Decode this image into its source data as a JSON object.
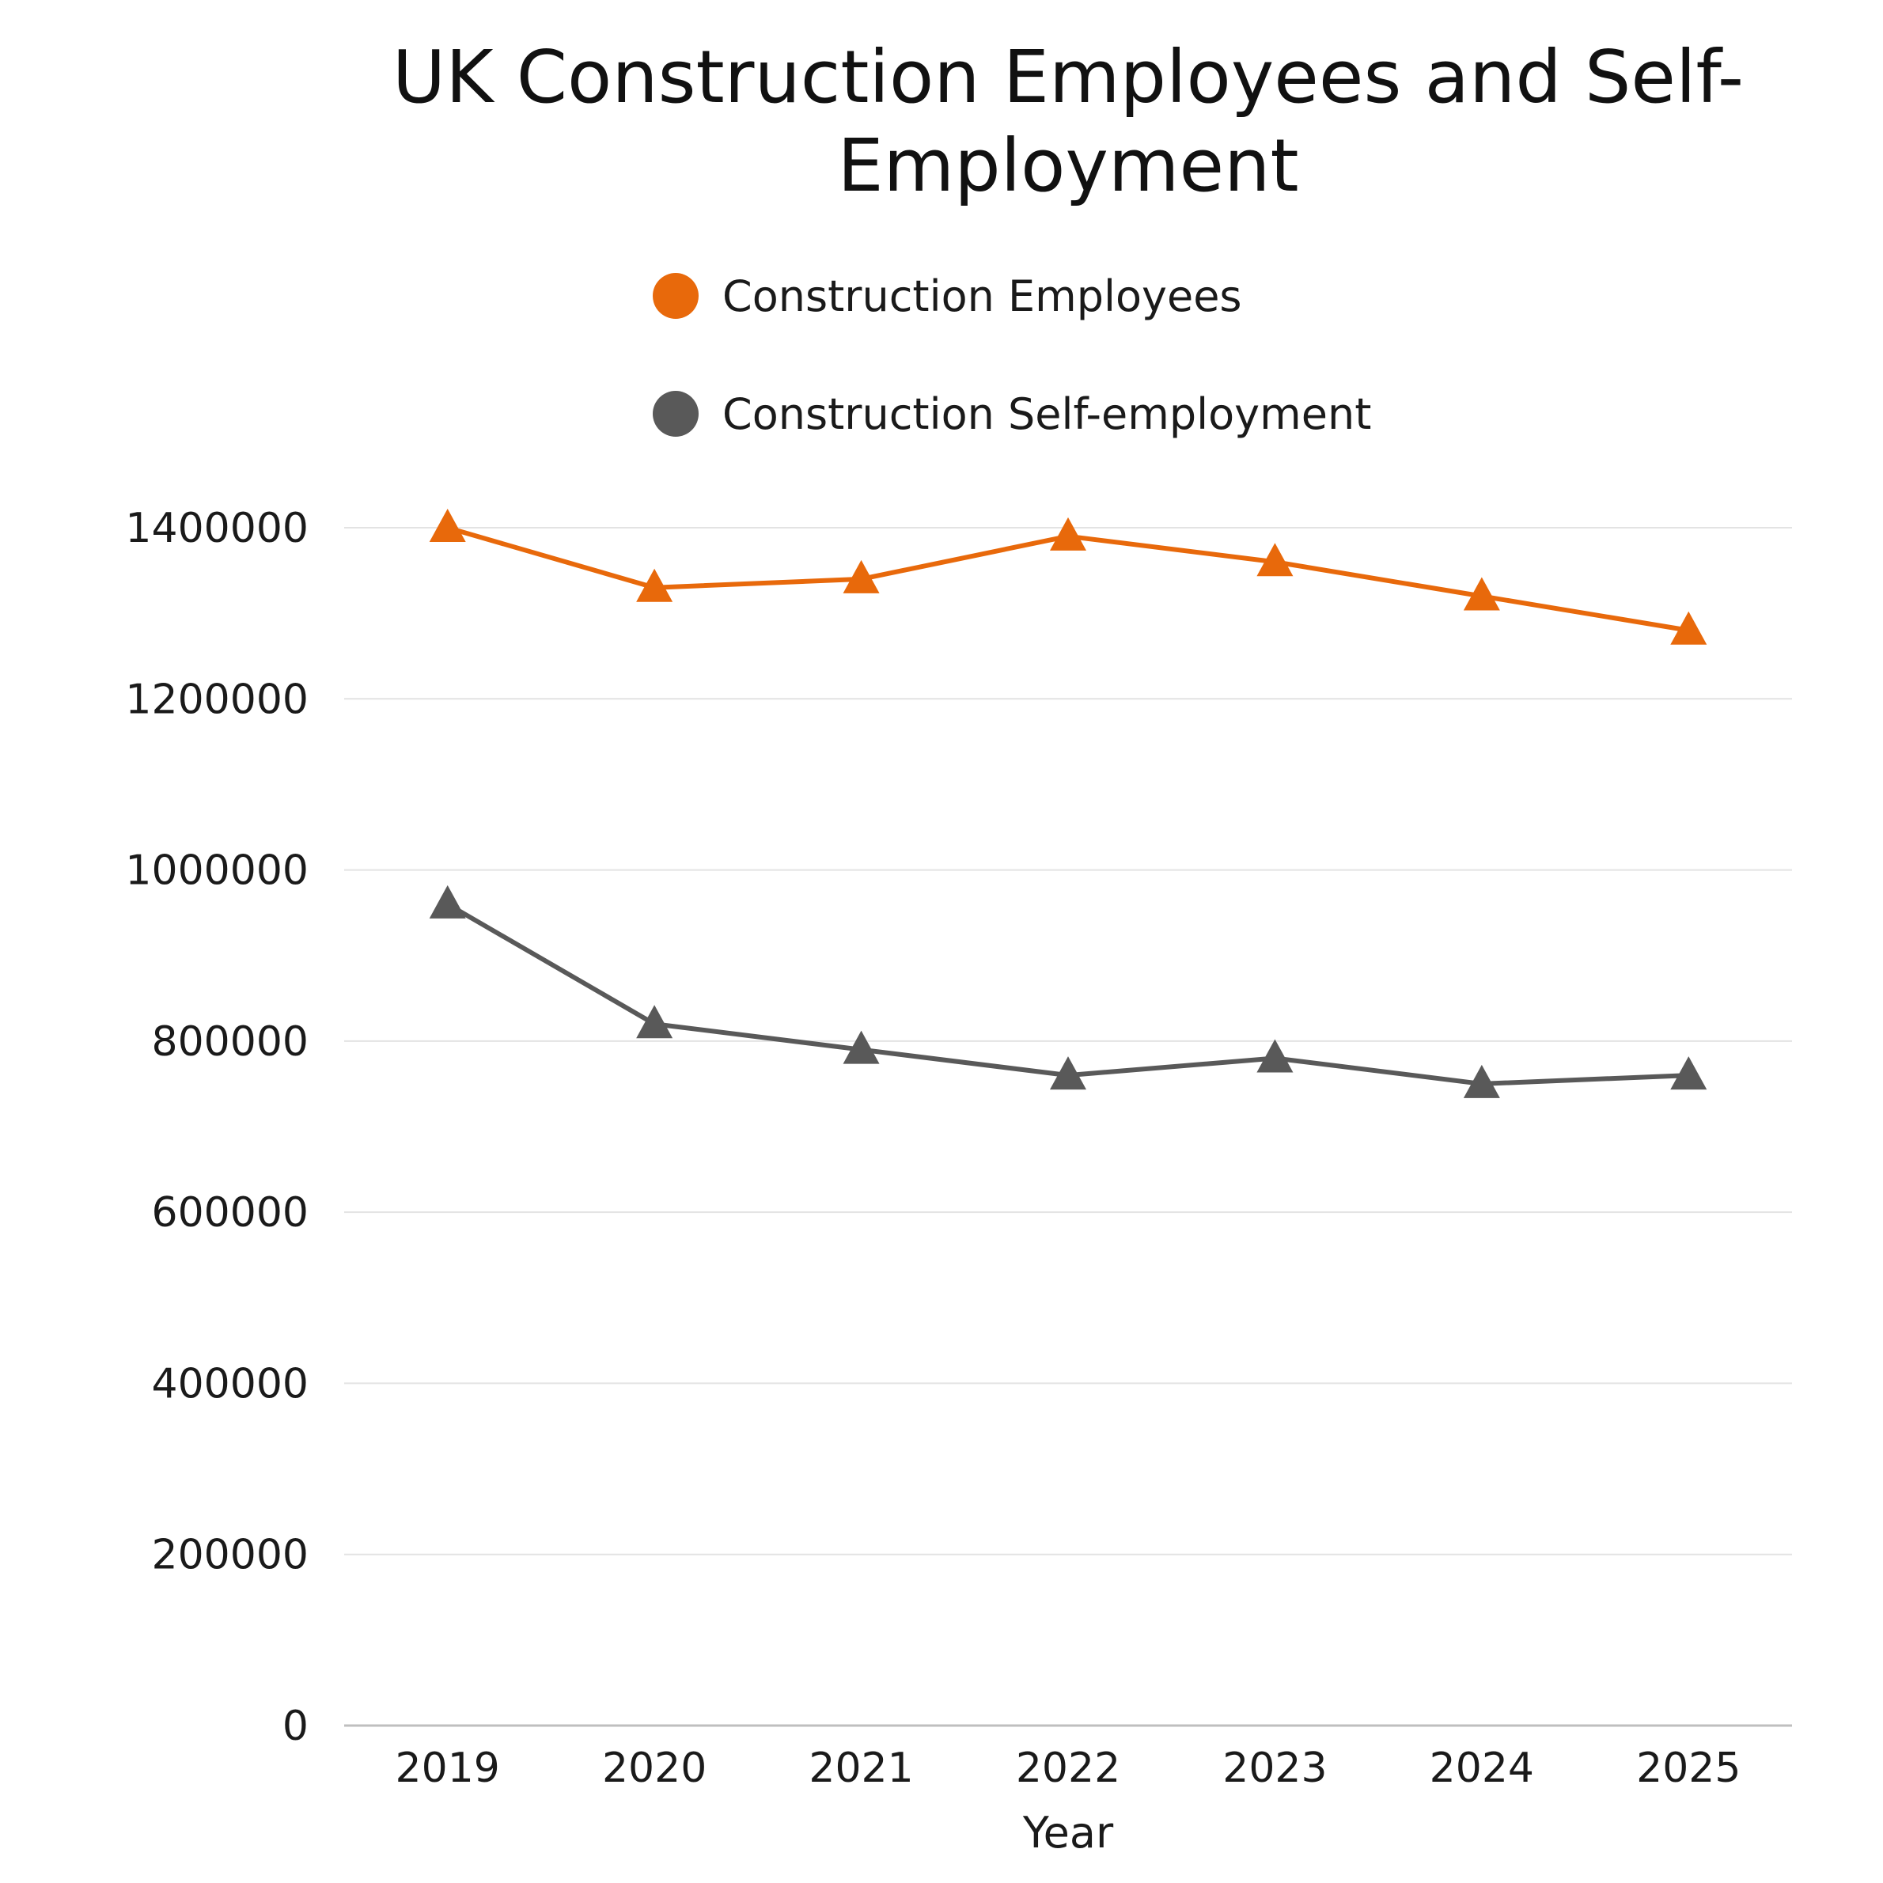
{
  "chart_data": {
    "type": "line",
    "title": "UK Construction Employees and Self-Employment",
    "xlabel": "Year",
    "ylabel": "",
    "categories": [
      "2019",
      "2020",
      "2021",
      "2022",
      "2023",
      "2024",
      "2025"
    ],
    "yticks": [
      "0",
      "200000",
      "400000",
      "600000",
      "800000",
      "1000000",
      "1200000",
      "1400000"
    ],
    "ylim": [
      0,
      1400000
    ],
    "grid": true,
    "legend_position": "top",
    "marker": "triangle",
    "series": [
      {
        "name": "Construction Employees",
        "color": "#E8690B",
        "values": [
          1400000,
          1330000,
          1340000,
          1390000,
          1360000,
          1320000,
          1280000
        ]
      },
      {
        "name": "Construction Self-employment",
        "color": "#595959",
        "values": [
          960000,
          820000,
          790000,
          760000,
          780000,
          750000,
          760000
        ]
      }
    ]
  }
}
